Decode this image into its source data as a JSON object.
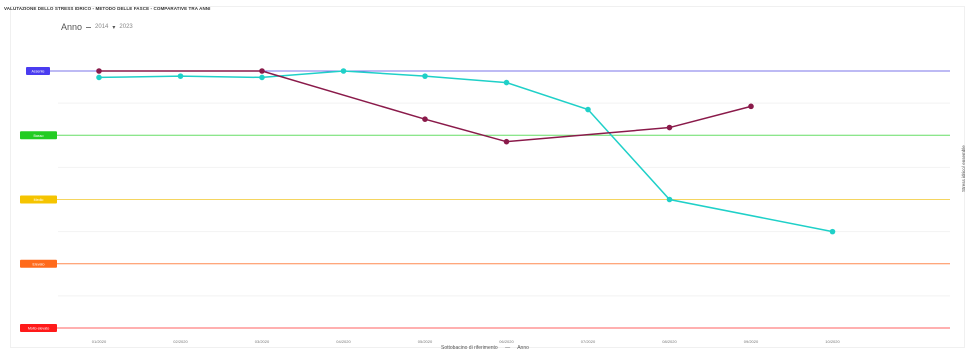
{
  "chart_data": {
    "type": "line",
    "title": "VALUTAZIONE DELLO STRESS IDRICO - METODO DELLE FASCE - COMPARATIVE TRA ANNI",
    "filter": {
      "label": "Anno",
      "year_from": "2014",
      "year_to": "2023"
    },
    "xlabel": "Sottobacino di riferimento",
    "xlabel_suffix": "Anno",
    "right_label": "Stress idrico/ ensemble",
    "categories": [
      "01/2020",
      "02/2020",
      "03/2020",
      "04/2020",
      "05/2020",
      "06/2020",
      "07/2020",
      "08/2020",
      "09/2020",
      "10/2020"
    ],
    "ylim": [
      0,
      5
    ],
    "bands": [
      {
        "level": 5,
        "label": "Assente",
        "color": "#4a3cf0",
        "line": "#7b74e8"
      },
      {
        "level": 4,
        "label": "Basso",
        "color": "#22cc22",
        "line": "#66dd66"
      },
      {
        "level": 3,
        "label": "Medio",
        "color": "#f5c400",
        "line": "#f5d560"
      },
      {
        "level": 2,
        "label": "Elevato",
        "color": "#ff6a1a",
        "line": "#ff8a50"
      },
      {
        "level": 1,
        "label": "Molto elevato",
        "color": "#ff1a1a",
        "line": "#ff6060"
      }
    ],
    "series": [
      {
        "color": "#1fd0c8",
        "values": [
          4.9,
          4.92,
          4.9,
          5.0,
          4.92,
          4.82,
          4.4,
          3.0,
          null,
          2.5
        ]
      },
      {
        "color": "#8a1a4a",
        "values": [
          5.0,
          null,
          5.0,
          null,
          4.25,
          3.9,
          null,
          4.12,
          4.45,
          null
        ]
      }
    ],
    "grid": true
  }
}
